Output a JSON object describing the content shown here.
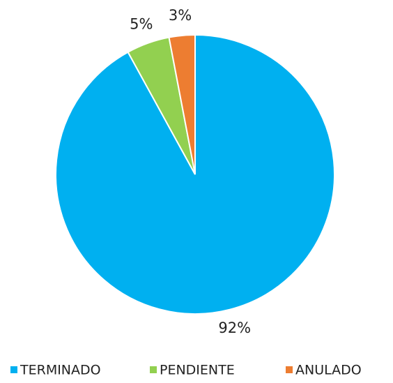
{
  "chart_data": {
    "type": "pie",
    "categories": [
      "TERMINADO",
      "PENDIENTE",
      "ANULADO"
    ],
    "values": [
      92,
      5,
      3
    ],
    "value_labels": [
      "92%",
      "5%",
      "3%"
    ],
    "colors": [
      "#00b0f0",
      "#92d050",
      "#ed7d31"
    ],
    "legend": "bottom"
  }
}
